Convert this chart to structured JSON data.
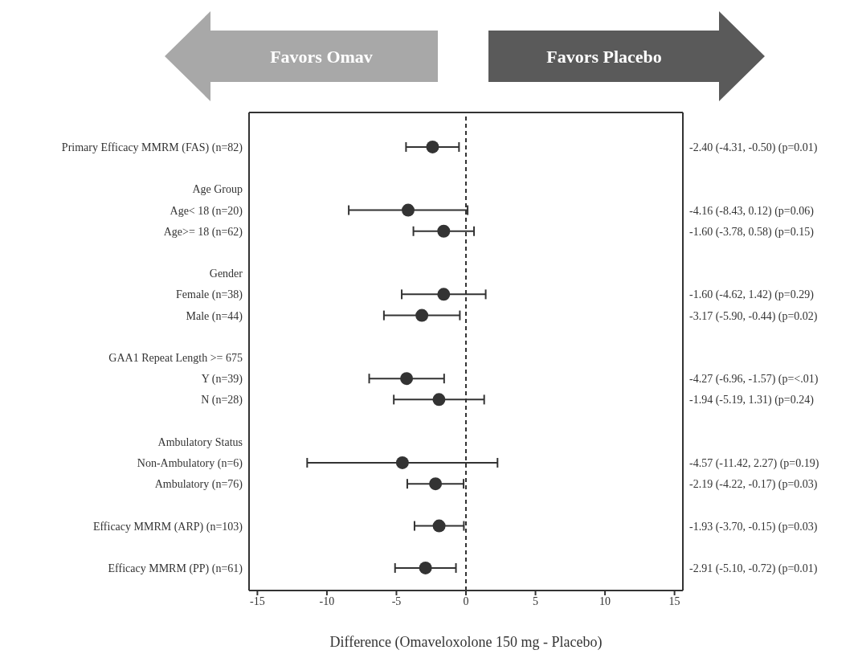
{
  "chart_data": {
    "type": "scatter",
    "orientation": "horizontal",
    "xlabel": "Difference (Omaveloxolone 150 mg - Placebo)",
    "annotations": [
      "Favors Omav",
      "Favors Placebo"
    ],
    "categories": [
      "Primary Efficacy MMRM (FAS) (n=82)",
      null,
      "Age Group",
      "Age< 18 (n=20)",
      "Age>= 18 (n=62)",
      null,
      "Gender",
      "Female (n=38)",
      "Male (n=44)",
      null,
      "GAA1 Repeat Length >= 675",
      "Y (n=39)",
      "N (n=28)",
      null,
      "Ambulatory Status",
      "Non-Ambulatory (n=6)",
      "Ambulatory (n=76)",
      null,
      "Efficacy MMRM (ARP) (n=103)",
      null,
      "Efficacy MMRM (PP) (n=61)"
    ],
    "values": [
      -2.4,
      null,
      null,
      -4.16,
      -1.6,
      null,
      null,
      -1.6,
      -3.17,
      null,
      null,
      -4.27,
      -1.94,
      null,
      null,
      -4.57,
      -2.19,
      null,
      -1.93,
      null,
      -2.91
    ],
    "errors": [
      [
        -4.31,
        -0.5
      ],
      null,
      null,
      [
        -8.43,
        0.12
      ],
      [
        -3.78,
        0.58
      ],
      null,
      null,
      [
        -4.62,
        1.42
      ],
      [
        -5.9,
        -0.44
      ],
      null,
      null,
      [
        -6.96,
        -1.57
      ],
      [
        -5.19,
        1.31
      ],
      null,
      null,
      [
        -11.42,
        2.27
      ],
      [
        -4.22,
        -0.17
      ],
      null,
      [
        -3.7,
        -0.15
      ],
      null,
      [
        -5.1,
        -0.72
      ]
    ],
    "value_labels": [
      "-2.40 (-4.31, -0.50) (p=0.01)",
      null,
      null,
      "-4.16 (-8.43, 0.12) (p=0.06)",
      "-1.60 (-3.78, 0.58) (p=0.15)",
      null,
      null,
      "-1.60 (-4.62, 1.42) (p=0.29)",
      "-3.17 (-5.90, -0.44) (p=0.02)",
      null,
      null,
      "-4.27 (-6.96, -1.57) (p=<.01)",
      "-1.94 (-5.19, 1.31) (p=0.24)",
      null,
      null,
      "-4.57 (-11.42, 2.27) (p=0.19)",
      "-2.19 (-4.22, -0.17) (p=0.03)",
      null,
      "-1.93 (-3.70, -0.15) (p=0.03)",
      null,
      "-2.91 (-5.10, -0.72) (p=0.01)"
    ],
    "color": "#333333",
    "marker": "circle",
    "xlim": [
      -15.6,
      15.6
    ],
    "xticks": [
      -15,
      -10,
      -5,
      0,
      5,
      10,
      15
    ],
    "ref_lines": [
      {
        "axis": "x",
        "value": 0,
        "line_style": "dashed",
        "color": "#333333"
      }
    ]
  }
}
